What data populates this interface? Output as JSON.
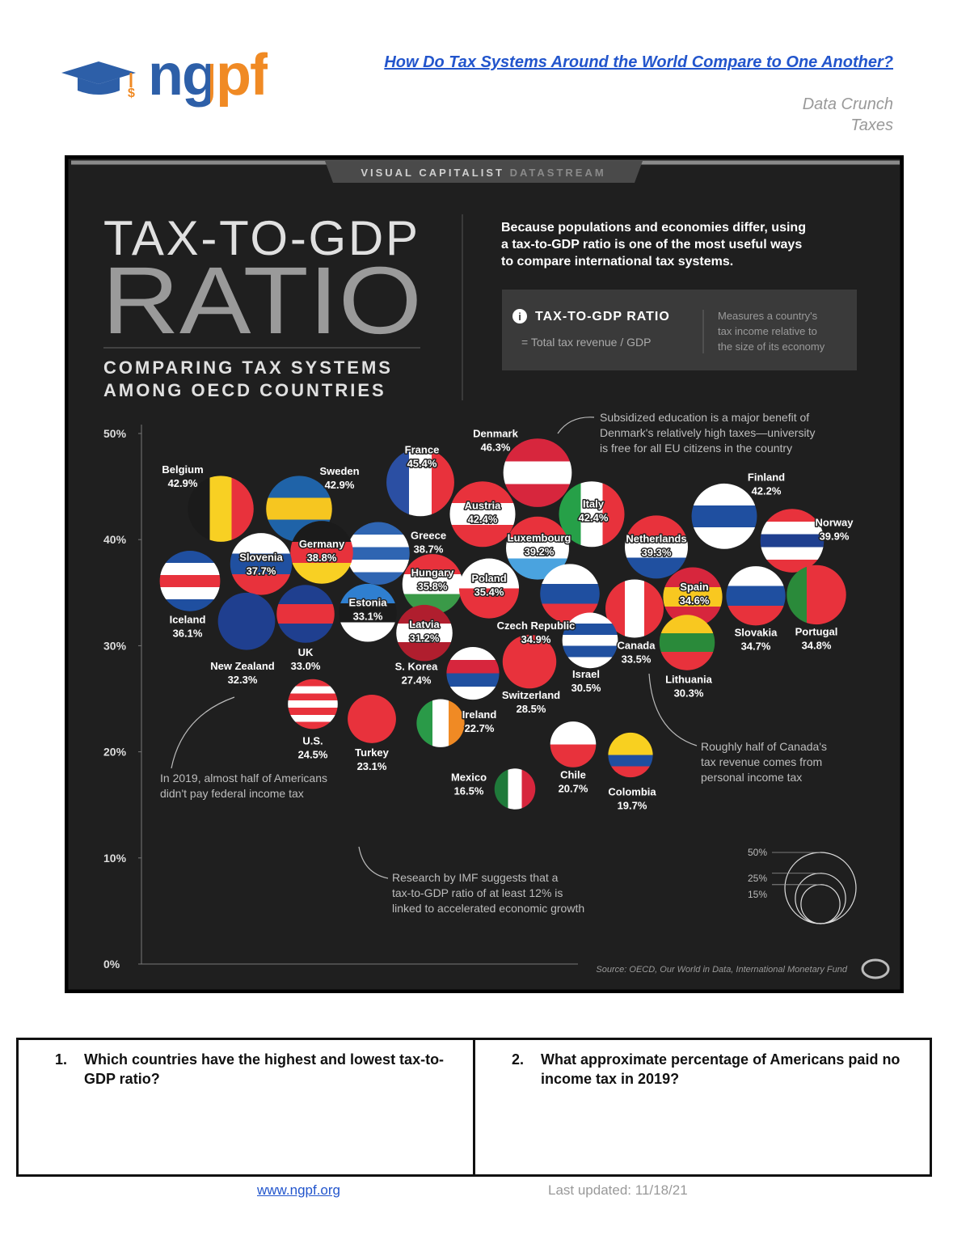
{
  "header": {
    "logo": "ngpf",
    "title": "How Do Tax Systems Around the World Compare to One Another?",
    "category": "Data Crunch",
    "topic": "Taxes"
  },
  "chart_data": {
    "type": "bubble",
    "banner": [
      "VISUAL CAPITALIST",
      "DATASTREAM"
    ],
    "title_lines": [
      "TAX-TO-GDP",
      "RATIO"
    ],
    "subtitle_lines": [
      "COMPARING TAX SYSTEMS",
      "AMONG OECD COUNTRIES"
    ],
    "description_lines": [
      "Because populations and economies differ, using",
      "a tax-to-GDP ratio is one of the most useful ways",
      "to compare international tax systems."
    ],
    "info": {
      "term": "TAX-TO-GDP RATIO",
      "formula": "= Total tax revenue / GDP",
      "definition_lines": [
        "Measures a country's",
        "tax income relative to",
        "the size of its economy"
      ]
    },
    "categories": [
      "Belgium",
      "Sweden",
      "France",
      "Denmark",
      "Italy",
      "Austria",
      "Finland",
      "Norway",
      "Netherlands",
      "Luxembourg",
      "Greece",
      "Germany",
      "Slovenia",
      "Iceland",
      "Hungary",
      "Poland",
      "Czech Republic",
      "Spain",
      "Slovakia",
      "Portugal",
      "Canada",
      "Lithuania",
      "Israel",
      "Estonia",
      "Latvia",
      "UK",
      "New Zealand",
      "S. Korea",
      "Switzerland",
      "U.S.",
      "Turkey",
      "Ireland",
      "Mexico",
      "Chile",
      "Colombia"
    ],
    "values": [
      42.9,
      42.9,
      45.4,
      46.3,
      42.4,
      42.4,
      42.2,
      39.9,
      39.3,
      39.2,
      38.7,
      38.8,
      37.7,
      36.1,
      35.8,
      35.4,
      34.9,
      34.6,
      34.7,
      34.8,
      33.5,
      30.3,
      30.5,
      33.1,
      31.2,
      33.0,
      32.3,
      27.4,
      28.5,
      24.5,
      23.1,
      22.7,
      16.5,
      20.7,
      19.7
    ],
    "value_labels": [
      "42.9%",
      "42.9%",
      "45.4%",
      "46.3%",
      "42.4%",
      "42.4%",
      "42.2%",
      "39.9%",
      "39.3%",
      "39.2%",
      "38.7%",
      "38.8%",
      "37.7%",
      "36.1%",
      "35.8%",
      "35.4%",
      "34.9%",
      "34.6%",
      "34.7%",
      "34.8%",
      "33.5%",
      "30.3%",
      "30.5%",
      "33.1%",
      "31.2%",
      "33.0%",
      "32.3%",
      "27.4%",
      "28.5%",
      "24.5%",
      "23.1%",
      "22.7%",
      "16.5%",
      "20.7%",
      "19.7%"
    ],
    "colors": [
      [
        "#1b1b1b",
        "#f8d023",
        "#e8323c"
      ],
      [
        "#1f63a8",
        "#f6c620",
        "#1f63a8"
      ],
      [
        "#2b4fa3",
        "#ffffff",
        "#e8323c"
      ],
      [
        "#d7263d",
        "#ffffff",
        "#d7263d"
      ],
      [
        "#26a048",
        "#ffffff",
        "#e8323c"
      ],
      [
        "#e8323c",
        "#ffffff",
        "#e8323c"
      ],
      [
        "#ffffff",
        "#1f4fa0",
        "#ffffff"
      ],
      [
        "#e8323c",
        "#ffffff",
        "#1f3f8f",
        "#ffffff",
        "#e8323c"
      ],
      [
        "#e8323c",
        "#ffffff",
        "#2050a0"
      ],
      [
        "#e8323c",
        "#ffffff",
        "#4aa3df"
      ],
      [
        "#2f65b2",
        "#ffffff",
        "#2f65b2",
        "#ffffff",
        "#2f65b2"
      ],
      [
        "#1b1b1b",
        "#e8323c",
        "#f8d023"
      ],
      [
        "#ffffff",
        "#2050a0",
        "#e8323c"
      ],
      [
        "#1f4fa0",
        "#ffffff",
        "#e8323c",
        "#ffffff",
        "#1f4fa0"
      ],
      [
        "#e8323c",
        "#ffffff",
        "#3a9a48"
      ],
      [
        "#ffffff",
        "#e8323c"
      ],
      [
        "#ffffff",
        "#1f4fa0",
        "#e8323c"
      ],
      [
        "#d7263d",
        "#f8c820",
        "#d7263d"
      ],
      [
        "#ffffff",
        "#1f4fa0",
        "#e8323c"
      ],
      [
        "#2a8a3a",
        "#e8323c",
        "#e8323c"
      ],
      [
        "#e8323c",
        "#ffffff",
        "#e8323c"
      ],
      [
        "#f8c820",
        "#2a8a3a",
        "#e8323c"
      ],
      [
        "#ffffff",
        "#2050a0",
        "#ffffff",
        "#2050a0",
        "#ffffff"
      ],
      [
        "#2f7fd0",
        "#1b1b1b",
        "#ffffff"
      ],
      [
        "#b01e2e",
        "#ffffff",
        "#b01e2e"
      ],
      [
        "#1f3f8f",
        "#e8323c",
        "#1f3f8f"
      ],
      [
        "#1f3f8f"
      ],
      [
        "#ffffff",
        "#d7263d",
        "#2050a0",
        "#ffffff"
      ],
      [
        "#e8323c"
      ],
      [
        "#e8323c",
        "#ffffff",
        "#e8323c",
        "#ffffff",
        "#e8323c",
        "#ffffff",
        "#e8323c"
      ],
      [
        "#e8323c"
      ],
      [
        "#2a9a48",
        "#ffffff",
        "#f08a24"
      ],
      [
        "#1f7a3a",
        "#ffffff",
        "#d7263d"
      ],
      [
        "#ffffff",
        "#e8323c"
      ],
      [
        "#f8d020",
        "#f8d020",
        "#1f4fa0",
        "#e8323c"
      ]
    ],
    "ylim": [
      0,
      50
    ],
    "yticks": [
      {
        "value": 0,
        "label": "0%"
      },
      {
        "value": 10,
        "label": "10%"
      },
      {
        "value": 20,
        "label": "20%"
      },
      {
        "value": 30,
        "label": "30%"
      },
      {
        "value": 40,
        "label": "40%"
      },
      {
        "value": 50,
        "label": "50%"
      }
    ],
    "size_legend": [
      {
        "value": 50,
        "label": "50%"
      },
      {
        "value": 25,
        "label": "25%"
      },
      {
        "value": 15,
        "label": "15%"
      }
    ],
    "annotations": [
      {
        "lines": [
          "Subsidized education is a major benefit of",
          "Denmark's relatively high taxes—university",
          "is free for all EU citizens in the country"
        ]
      },
      {
        "lines": [
          "In 2019, almost half of Americans",
          "didn't pay federal income tax"
        ]
      },
      {
        "lines": [
          "Research by IMF suggests that a",
          "tax-to-GDP ratio of at least 12% is",
          "linked to accelerated economic growth"
        ]
      },
      {
        "lines": [
          "Roughly half of Canada's",
          "tax revenue comes from",
          "personal income tax"
        ]
      }
    ],
    "source": "Source: OECD, Our World in Data, International Monetary Fund"
  },
  "questions": [
    {
      "number": "1.",
      "text": "Which countries have the highest and lowest tax-to-GDP ratio?"
    },
    {
      "number": "2.",
      "text": "What approximate percentage of Americans paid no income tax in 2019?"
    }
  ],
  "footer": {
    "link": "www.ngpf.org",
    "updated": "Last updated: 11/18/21"
  }
}
